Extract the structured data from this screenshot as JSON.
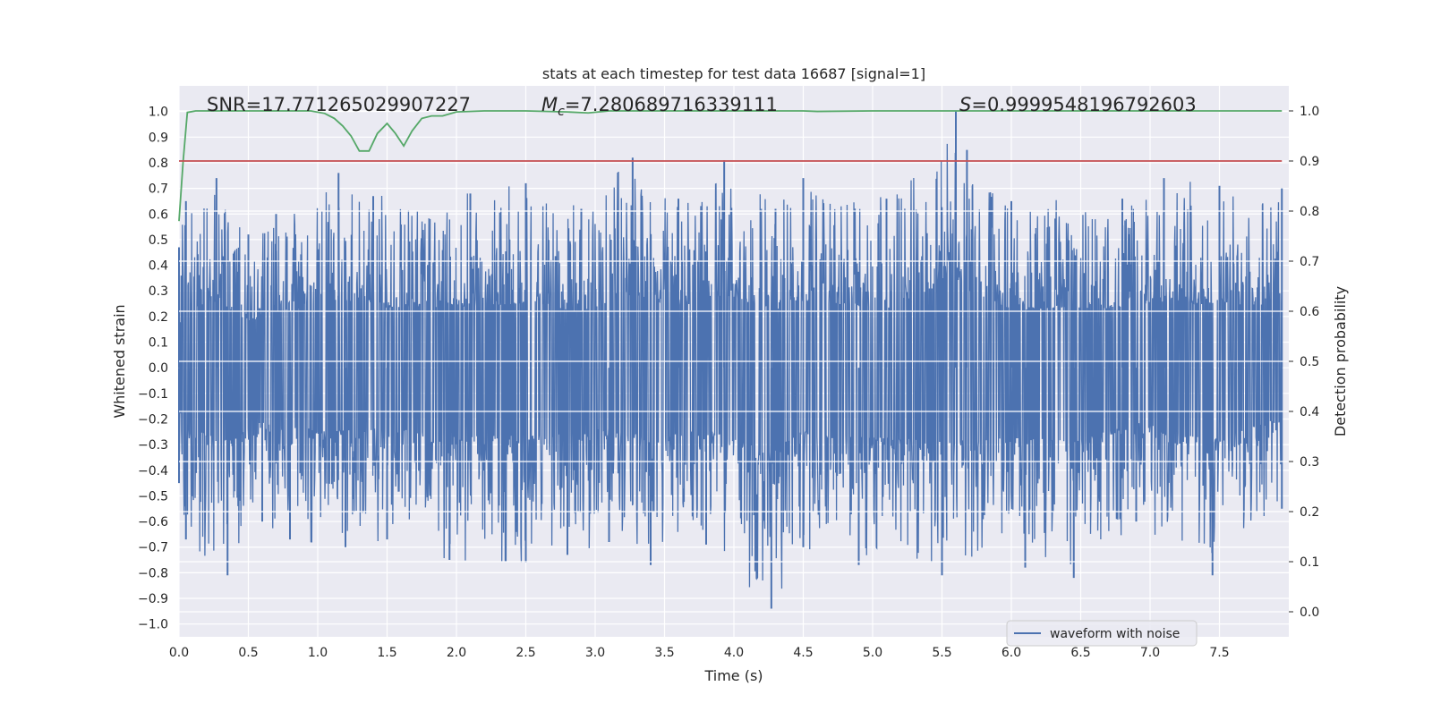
{
  "chart_data": {
    "type": "line",
    "title": "stats at each timestep for test data 16687 [signal=1]",
    "xlabel": "Time (s)",
    "ylabel": "Whitened strain",
    "y2label": "Detection probability",
    "xlim": [
      0.0,
      8.0
    ],
    "ylim": [
      -1.05,
      1.1
    ],
    "y2lim": [
      -0.05,
      1.05
    ],
    "xticks": [
      0.0,
      0.5,
      1.0,
      1.5,
      2.0,
      2.5,
      3.0,
      3.5,
      4.0,
      4.5,
      5.0,
      5.5,
      6.0,
      6.5,
      7.0,
      7.5
    ],
    "yticks": [
      -1.0,
      -0.9,
      -0.8,
      -0.7,
      -0.6,
      -0.5,
      -0.4,
      -0.3,
      -0.2,
      -0.1,
      0.0,
      0.1,
      0.2,
      0.3,
      0.4,
      0.5,
      0.6,
      0.7,
      0.8,
      0.9,
      1.0
    ],
    "y2ticks": [
      0.0,
      0.1,
      0.2,
      0.3,
      0.4,
      0.5,
      0.6,
      0.7,
      0.8,
      0.9,
      1.0
    ],
    "grid": true,
    "legend_position": "lower-right",
    "annotations": {
      "snr": "SNR=17.771265029907227",
      "mc_symbol": "M",
      "mc_subscript": "c",
      "mc_value": "=7.280689716339111",
      "s_symbol": "S",
      "s_value": "=0.9999548196792603"
    },
    "series": [
      {
        "name": "waveform with noise",
        "axis": "left",
        "color": "#4c72b0",
        "description_shape": "dense noise",
        "envelope_positive": [
          [
            0.0,
            0.47
          ],
          [
            0.05,
            0.65
          ],
          [
            0.27,
            0.74
          ],
          [
            0.5,
            0.52
          ],
          [
            0.7,
            0.6
          ],
          [
            1.15,
            0.76
          ],
          [
            1.4,
            0.67
          ],
          [
            2.1,
            0.68
          ],
          [
            2.5,
            0.72
          ],
          [
            2.9,
            0.62
          ],
          [
            3.27,
            0.82
          ],
          [
            3.6,
            0.66
          ],
          [
            3.93,
            0.81
          ],
          [
            4.3,
            0.62
          ],
          [
            4.5,
            0.74
          ],
          [
            5.1,
            0.66
          ],
          [
            5.6,
            1.0
          ],
          [
            5.68,
            0.85
          ],
          [
            6.0,
            0.65
          ],
          [
            6.8,
            0.66
          ],
          [
            7.1,
            0.74
          ],
          [
            7.5,
            0.71
          ],
          [
            7.95,
            0.7
          ]
        ],
        "envelope_negative": [
          [
            0.0,
            -0.45
          ],
          [
            0.05,
            -0.67
          ],
          [
            0.35,
            -0.81
          ],
          [
            0.6,
            -0.6
          ],
          [
            0.8,
            -0.67
          ],
          [
            1.2,
            -0.7
          ],
          [
            1.5,
            -0.67
          ],
          [
            1.95,
            -0.75
          ],
          [
            2.5,
            -0.76
          ],
          [
            2.8,
            -0.73
          ],
          [
            3.1,
            -0.68
          ],
          [
            3.4,
            -0.77
          ],
          [
            3.8,
            -0.69
          ],
          [
            4.27,
            -0.94
          ],
          [
            4.5,
            -0.7
          ],
          [
            4.9,
            -0.77
          ],
          [
            5.5,
            -0.81
          ],
          [
            6.1,
            -0.78
          ],
          [
            6.45,
            -0.82
          ],
          [
            6.9,
            -0.6
          ],
          [
            7.45,
            -0.81
          ],
          [
            7.95,
            -0.55
          ]
        ]
      },
      {
        "name": "",
        "axis": "right",
        "color": "#55a868",
        "x": [
          0.0,
          0.03,
          0.06,
          0.12,
          0.2,
          0.4,
          0.6,
          0.8,
          0.95,
          1.05,
          1.12,
          1.18,
          1.24,
          1.3,
          1.37,
          1.43,
          1.5,
          1.56,
          1.62,
          1.68,
          1.75,
          1.82,
          1.9,
          2.0,
          2.2,
          2.5,
          2.8,
          2.95,
          3.1,
          3.5,
          4.0,
          4.5,
          4.6,
          5.0,
          5.5,
          6.0,
          6.5,
          7.0,
          7.5,
          7.95
        ],
        "y": [
          0.78,
          0.9,
          0.997,
          1.0,
          1.0,
          1.0,
          1.0,
          1.0,
          1.0,
          0.995,
          0.985,
          0.97,
          0.95,
          0.92,
          0.92,
          0.955,
          0.975,
          0.955,
          0.93,
          0.96,
          0.985,
          0.99,
          0.99,
          0.998,
          1.0,
          1.0,
          0.998,
          0.996,
          1.0,
          1.0,
          1.0,
          1.0,
          0.999,
          1.0,
          1.0,
          1.0,
          1.0,
          1.0,
          1.0,
          1.0
        ]
      },
      {
        "name": "",
        "axis": "right",
        "color": "#c44e52",
        "x": [
          0.0,
          7.95
        ],
        "y": [
          0.9,
          0.9
        ]
      }
    ]
  }
}
